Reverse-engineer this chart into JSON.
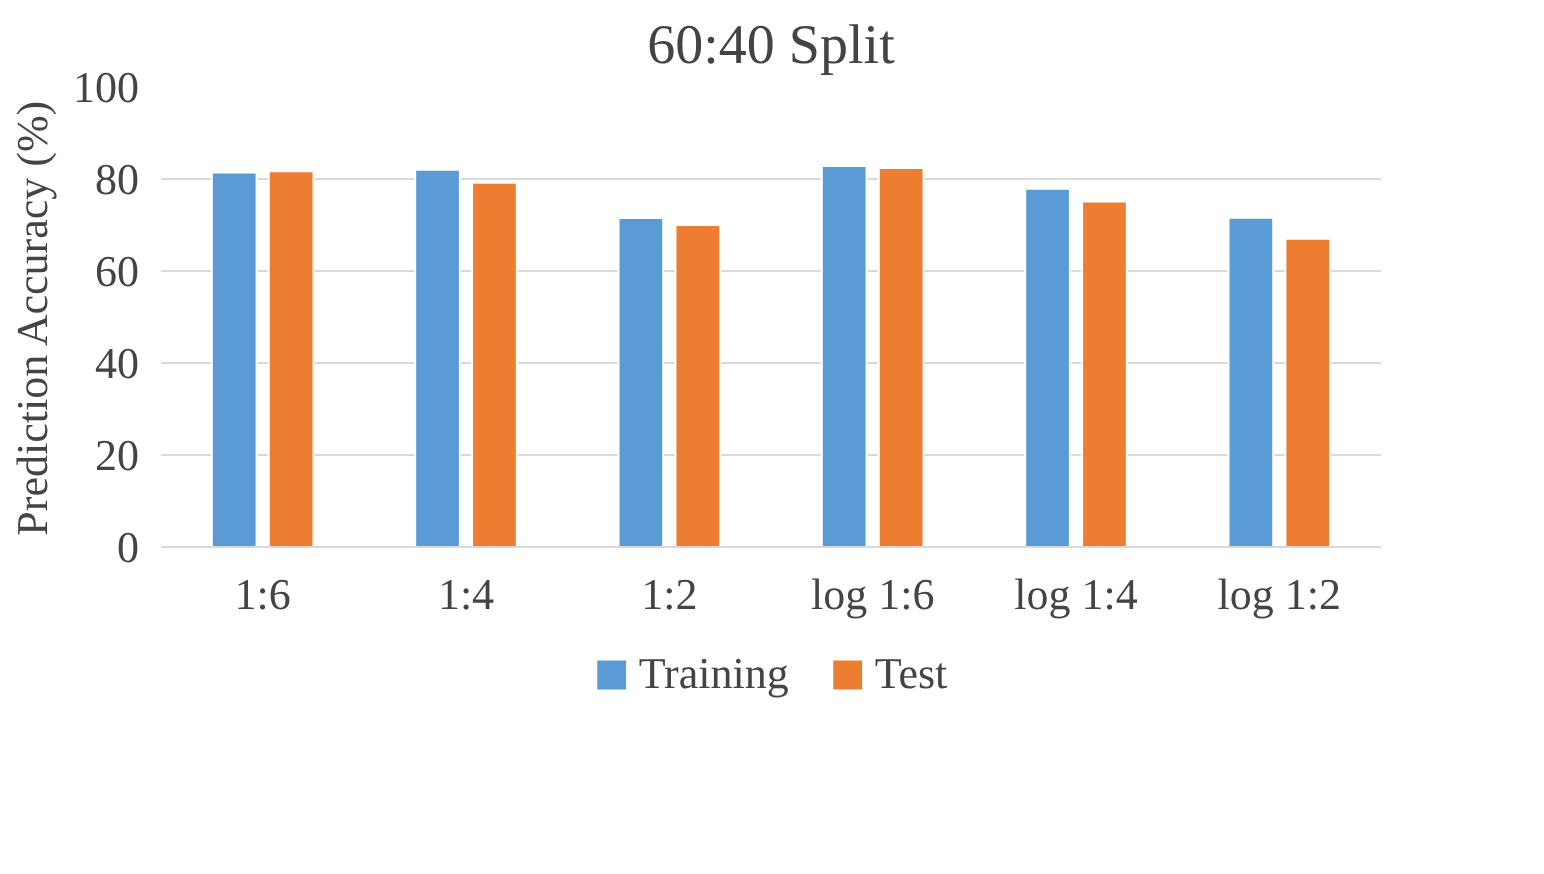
{
  "chart_data": {
    "type": "bar",
    "title": "60:40 Split",
    "ylabel": "Prediction Accuracy (%)",
    "categories": [
      "1:6",
      "1:4",
      "1:2",
      "log 1:6",
      "log 1:4",
      "log 1:2"
    ],
    "series": [
      {
        "name": "Training",
        "color": "#5b9bd5",
        "values": [
          81.4,
          82.0,
          71.5,
          82.8,
          77.9,
          71.6
        ]
      },
      {
        "name": "Test",
        "color": "#ed7d31",
        "values": [
          81.7,
          79.2,
          70.0,
          82.4,
          75.1,
          67.0
        ]
      }
    ],
    "ylim": [
      0,
      100
    ],
    "yticks": [
      0,
      20,
      40,
      60,
      80,
      100
    ],
    "grid": "y",
    "legend": "bottom"
  }
}
